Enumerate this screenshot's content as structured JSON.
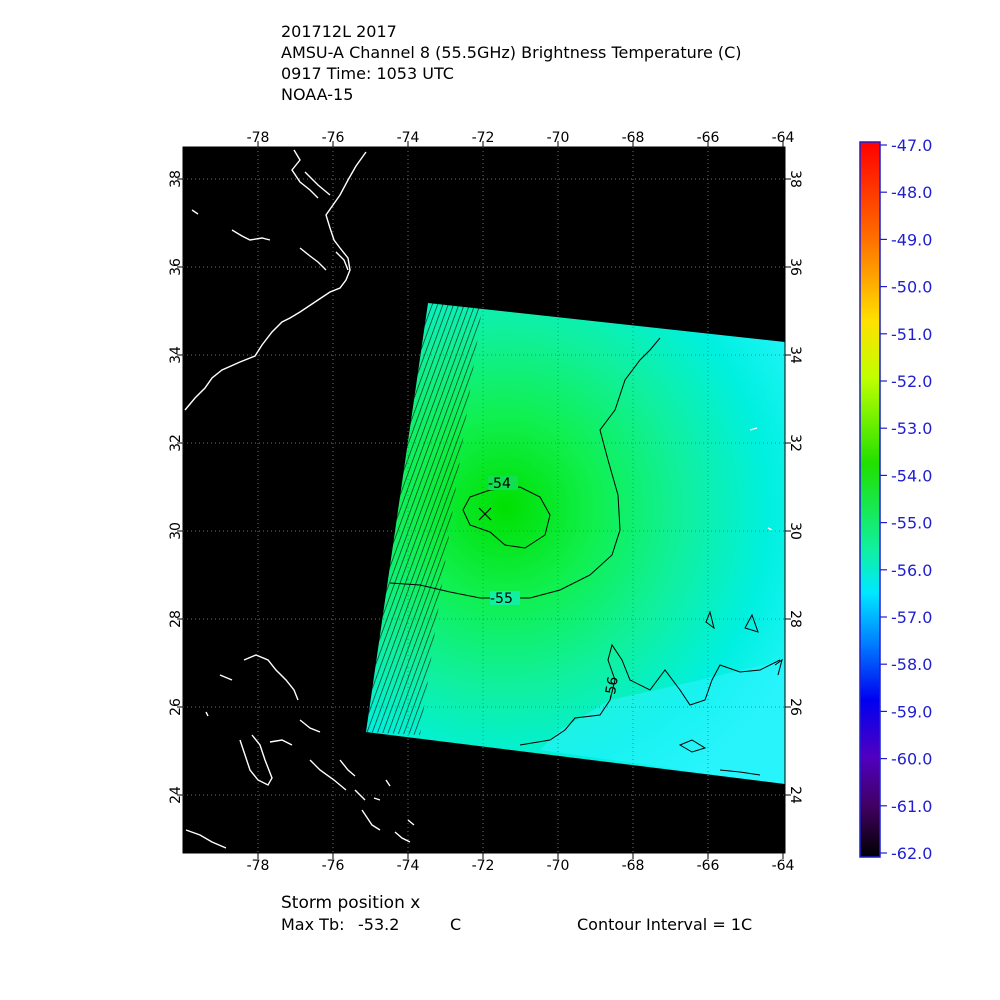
{
  "header": {
    "line1": "201712L 2017",
    "line2": "AMSU-A Channel 8 (55.5GHz) Brightness Temperature (C)",
    "line3": "0917 Time: 1053 UTC",
    "line4": "NOAA-15"
  },
  "footer": {
    "storm_position": "Storm position x",
    "max_tb_label": "Max Tb:",
    "max_tb_value": "-53.2",
    "max_tb_unit": "C",
    "contour_interval": "Contour Interval = 1C"
  },
  "map": {
    "lon_ticks": [
      "-78",
      "-76",
      "-74",
      "-72",
      "-70",
      "-68",
      "-66",
      "-64"
    ],
    "lat_ticks": [
      "24",
      "26",
      "28",
      "30",
      "32",
      "34",
      "36",
      "38"
    ],
    "lon_range": [
      -80,
      -64
    ],
    "lat_range": [
      22.5,
      38.5
    ],
    "storm_position": {
      "lon": -71.9,
      "lat": 30.4
    },
    "contour_labels": [
      "-54",
      "-55",
      "-56"
    ],
    "colors": {
      "background": "#000000",
      "coast": "#ffffff",
      "warm_core": "#00e000",
      "mid": "#10f090",
      "cool": "#00f0f0"
    }
  },
  "colorbar": {
    "labels": [
      "-47.0",
      "-48.0",
      "-49.0",
      "-50.0",
      "-51.0",
      "-52.0",
      "-53.0",
      "-54.0",
      "-55.0",
      "-56.0",
      "-57.0",
      "-58.0",
      "-59.0",
      "-60.0",
      "-61.0",
      "-62.0"
    ],
    "range": [
      -62.0,
      -47.0
    ],
    "label_color": "#1f1fd0"
  }
}
